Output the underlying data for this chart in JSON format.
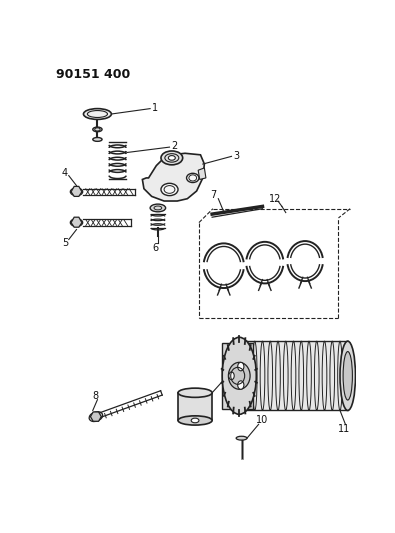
{
  "title": "90151 400",
  "bg": "#ffffff",
  "lc": "#222222",
  "tc": "#111111",
  "fw": 3.95,
  "fh": 5.33,
  "dpi": 100
}
